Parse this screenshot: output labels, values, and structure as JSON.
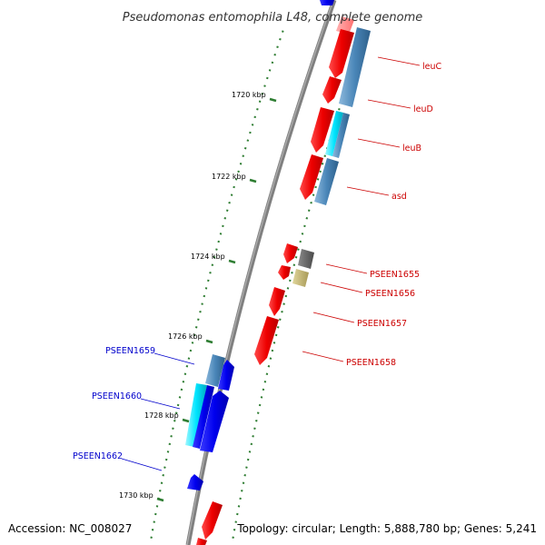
{
  "title": "Pseudomonas entomophila L48, complete genome",
  "footer": {
    "accession": "Accession: NC_008027",
    "summary": "Topology: circular; Length: 5,888,780 bp; Genes: 5,241"
  },
  "scale_labels": [
    "1720 kbp",
    "1722 kbp",
    "1724 kbp",
    "1726 kbp",
    "1728 kbp",
    "1730 kbp"
  ],
  "colors": {
    "backbone": "#808080",
    "tick": "#2e7d32",
    "forward_red": "#ee0000",
    "reverse_blue": "#0000ee",
    "steel_blue": "#4a86b8",
    "cyan": "#00e5ff",
    "dark_gray": "#606060",
    "khaki": "#c8bb78",
    "label_red": "#cc0000",
    "label_blue": "#0000cc"
  },
  "gene_labels": [
    {
      "text": "leuC",
      "color": "red"
    },
    {
      "text": "leuD",
      "color": "red"
    },
    {
      "text": "leuB",
      "color": "red"
    },
    {
      "text": "asd",
      "color": "red"
    },
    {
      "text": "PSEEN1655",
      "color": "red"
    },
    {
      "text": "PSEEN1656",
      "color": "red"
    },
    {
      "text": "PSEEN1657",
      "color": "red"
    },
    {
      "text": "PSEEN1658",
      "color": "red"
    },
    {
      "text": "PSEEN1659",
      "color": "blue"
    },
    {
      "text": "PSEEN1660",
      "color": "blue"
    },
    {
      "text": "PSEEN1662",
      "color": "blue"
    }
  ]
}
